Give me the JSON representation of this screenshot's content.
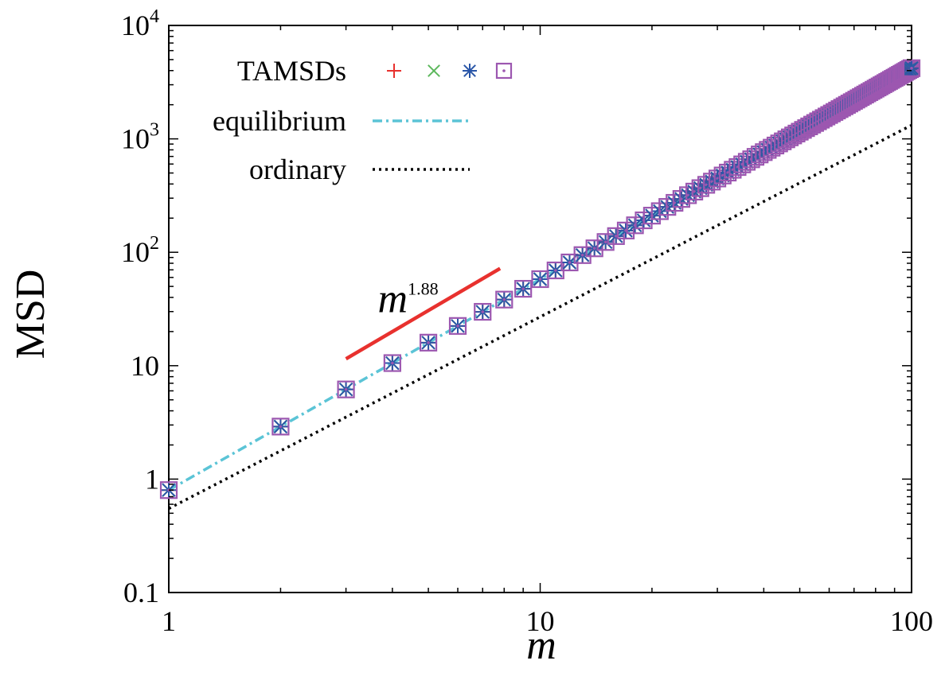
{
  "chart_data": {
    "type": "scatter",
    "x_scale": "log",
    "y_scale": "log",
    "xlim": [
      1,
      100
    ],
    "ylim": [
      0.1,
      10000
    ],
    "xlabel": "m",
    "ylabel": "MSD",
    "grid": false,
    "legend_position": "top-left",
    "x_ticks": [
      {
        "value": 1,
        "label": "1"
      },
      {
        "value": 10,
        "label": "10"
      },
      {
        "value": 100,
        "label": "100"
      }
    ],
    "y_ticks": [
      {
        "value": 0.1,
        "label": "0.1"
      },
      {
        "value": 1,
        "label": "1"
      },
      {
        "value": 10,
        "label": "10"
      },
      {
        "value": 100,
        "label_base": "10",
        "label_exp": "2"
      },
      {
        "value": 1000,
        "label_base": "10",
        "label_exp": "3"
      },
      {
        "value": 10000,
        "label_base": "10",
        "label_exp": "4"
      }
    ],
    "marker_series": {
      "legend_label": "TAMSDs",
      "x": [
        1,
        2,
        3,
        4,
        5,
        6,
        7,
        8,
        9,
        10,
        11,
        12,
        13,
        14,
        15,
        16,
        17,
        18,
        19,
        20,
        21,
        22,
        23,
        24,
        25,
        26,
        27,
        28,
        29,
        30,
        31,
        32,
        33,
        34,
        35,
        36,
        37,
        38,
        39,
        40,
        41,
        42,
        43,
        44,
        45,
        46,
        47,
        48,
        49,
        50,
        51,
        52,
        53,
        54,
        55,
        56,
        57,
        58,
        59,
        60,
        61,
        62,
        63,
        64,
        65,
        66,
        67,
        68,
        69,
        70,
        71,
        72,
        73,
        74,
        75,
        76,
        77,
        78,
        79,
        80,
        81,
        82,
        83,
        84,
        85,
        86,
        87,
        88,
        89,
        90,
        91,
        92,
        93,
        94,
        95,
        96,
        97,
        98,
        99,
        100
      ],
      "exponent": 1.86,
      "prefactor": 0.8,
      "markers": [
        {
          "name": "plus",
          "color": "#e8312e"
        },
        {
          "name": "cross",
          "color": "#5cb85c"
        },
        {
          "name": "asterisk",
          "color": "#2a56a8"
        },
        {
          "name": "dotted-square",
          "color": "#9c57b0"
        }
      ]
    },
    "series": [
      {
        "name": "equilibrium",
        "style": "dash-dot",
        "color": "#5bc4d6",
        "x_range": [
          1,
          100
        ],
        "prefactor": 0.8,
        "exponent": 1.86
      },
      {
        "name": "ordinary",
        "style": "dotted",
        "color": "#000000",
        "x_range": [
          1,
          100
        ],
        "prefactor": 0.55,
        "exponent": 1.69
      }
    ],
    "guide_line": {
      "color": "#e8312e",
      "x": [
        3,
        7.8
      ],
      "y": [
        11.5,
        72
      ],
      "label_base": "m",
      "label_exp": "1.88",
      "label_position": {
        "x": 3.6,
        "y": 45
      }
    }
  }
}
